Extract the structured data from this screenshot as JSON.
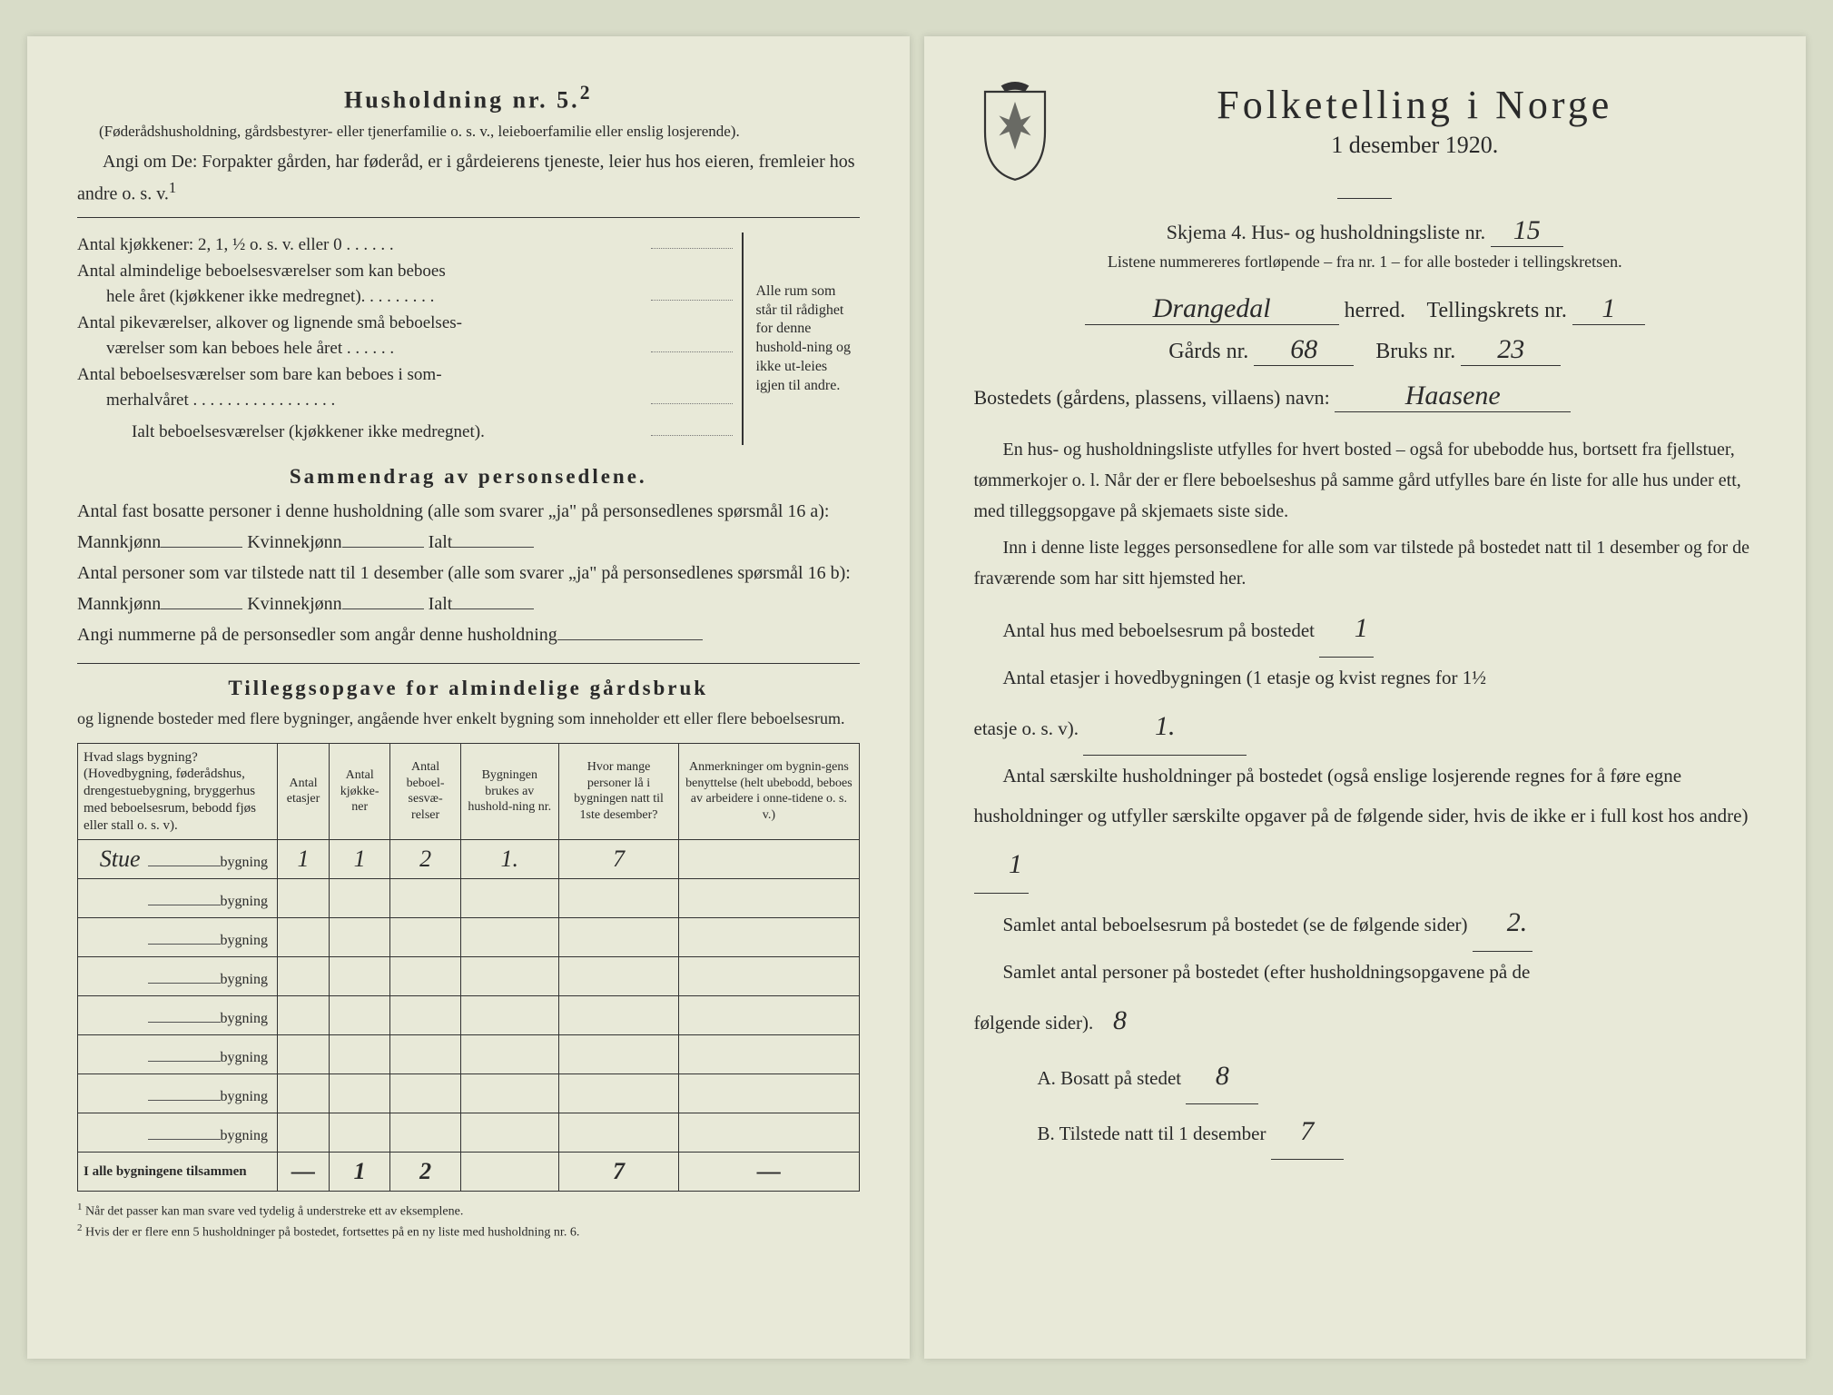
{
  "left": {
    "heading": "Husholdning nr. 5.",
    "heading_sup": "2",
    "note1": "(Føderådshusholdning, gårdsbestyrer- eller tjenerfamilie o. s. v., leieboerfamilie eller enslig losjerende).",
    "note2": "Angi om De: Forpakter gården, har føderåd, er i gårdeierens tjeneste, leier hus hos eieren, fremleier hos andre o. s. v.",
    "note2_sup": "1",
    "kitchen": {
      "l1": "Antal kjøkkener: 2, 1, ½ o. s. v. eller 0 . . . . . .",
      "l2a": "Antal almindelige beboelsesværelser som kan beboes",
      "l2b": "hele året (kjøkkener ikke medregnet). . . . . . . . .",
      "l3a": "Antal pikeværelser, alkover og lignende små beboelses-",
      "l3b": "værelser som kan beboes hele året . . . . . .",
      "l4a": "Antal beboelsesværelser som bare kan beboes i som-",
      "l4b": "merhalvåret . . . . . . . . . . . . . . . . .",
      "l5": "Ialt beboelsesværelser (kjøkkener ikke medregnet).",
      "bracket": "Alle rum som står til rådighet for denne hushold-ning og ikke ut-leies igjen til andre."
    },
    "summary": {
      "heading": "Sammendrag av personsedlene.",
      "l1": "Antal fast bosatte personer i denne husholdning (alle som svarer „ja\" på personsedlenes spørsmål 16 a): Mannkjønn",
      "l1b": "Kvinnekjønn",
      "l1c": "Ialt",
      "l2": "Antal personer som var tilstede natt til 1 desember (alle som svarer „ja\" på personsedlenes spørsmål 16 b): Mannkjønn",
      "l3": "Angi nummerne på de personsedler som angår denne husholdning"
    },
    "tillegg": {
      "heading": "Tilleggsopgave for almindelige gårdsbruk",
      "sub": "og lignende bosteder med flere bygninger, angående hver enkelt bygning som inneholder ett eller flere beboelsesrum."
    },
    "table": {
      "headers": [
        "Hvad slags bygning?\n(Hovedbygning, føderådshus, drengestuebygning, bryggerhus med beboelsesrum, bebodd fjøs eller stall o. s. v).",
        "Antal etasjer",
        "Antal kjøkke-ner",
        "Antal beboel-sesvæ-relser",
        "Bygningen brukes av hushold-ning nr.",
        "Hvor mange personer lå i bygningen natt til 1ste desember?",
        "Anmerkninger om bygnin-gens benyttelse (helt ubebodd, beboes av arbeidere i onne-tidene o. s. v.)"
      ],
      "row_suffix": "bygning",
      "rows": [
        {
          "name": "Stue",
          "c1": "1",
          "c2": "1",
          "c3": "2",
          "c4": "1.",
          "c5": "7",
          "c6": ""
        },
        {
          "name": "",
          "c1": "",
          "c2": "",
          "c3": "",
          "c4": "",
          "c5": "",
          "c6": ""
        },
        {
          "name": "",
          "c1": "",
          "c2": "",
          "c3": "",
          "c4": "",
          "c5": "",
          "c6": ""
        },
        {
          "name": "",
          "c1": "",
          "c2": "",
          "c3": "",
          "c4": "",
          "c5": "",
          "c6": ""
        },
        {
          "name": "",
          "c1": "",
          "c2": "",
          "c3": "",
          "c4": "",
          "c5": "",
          "c6": ""
        },
        {
          "name": "",
          "c1": "",
          "c2": "",
          "c3": "",
          "c4": "",
          "c5": "",
          "c6": ""
        },
        {
          "name": "",
          "c1": "",
          "c2": "",
          "c3": "",
          "c4": "",
          "c5": "",
          "c6": ""
        },
        {
          "name": "",
          "c1": "",
          "c2": "",
          "c3": "",
          "c4": "",
          "c5": "",
          "c6": ""
        }
      ],
      "totals_label": "I alle bygningene tilsammen",
      "totals": [
        "—",
        "1",
        "2",
        "",
        "7",
        "—"
      ]
    },
    "footnotes": {
      "f1": "Når det passer kan man svare ved tydelig å understreke ett av eksemplene.",
      "f2": "Hvis der er flere enn 5 husholdninger på bostedet, fortsettes på en ny liste med husholdning nr. 6."
    }
  },
  "right": {
    "title": "Folketelling  i  Norge",
    "subtitle": "1 desember 1920.",
    "skjema_a": "Skjema 4.  Hus- og husholdningsliste nr.",
    "skjema_nr": "15",
    "listene": "Listene nummereres fortløpende – fra nr. 1 – for alle bosteder i tellingskretsen.",
    "herred_name": "Drangedal",
    "herred_label": "herred.",
    "krets_label": "Tellingskrets nr.",
    "krets_nr": "1",
    "gards_label": "Gårds nr.",
    "gards_nr": "68",
    "bruks_label": "Bruks nr.",
    "bruks_nr": "23",
    "bosted_label": "Bostedets (gårdens, plassens, villaens) navn:",
    "bosted_name": "Haasene",
    "para1": "En hus- og husholdningsliste utfylles for hvert bosted – også for ubebodde hus, bortsett fra fjellstuer, tømmerkojer o. l.  Når der er flere beboelseshus på samme gård utfylles bare én liste for alle hus under ett, med tilleggsopgave på skjemaets siste side.",
    "para2": "Inn i denne liste legges personsedlene for alle som var tilstede på bostedet natt til 1 desember og for de fraværende som har sitt hjemsted her.",
    "a1_label": "Antal hus med beboelsesrum på bostedet",
    "a1_val": "1",
    "a2_label_a": "Antal etasjer i hovedbygningen (1 etasje og kvist regnes for 1½",
    "a2_label_b": "etasje o. s. v).",
    "a2_val": "1.",
    "a3_label": "Antal særskilte husholdninger på bostedet (også enslige losjerende regnes for å føre egne husholdninger og utfyller særskilte opgaver på de følgende sider, hvis de ikke er i full kost hos andre)",
    "a3_val": "1",
    "a4_label": "Samlet antal beboelsesrum på bostedet (se de følgende sider)",
    "a4_val": "2.",
    "a5_label": "Samlet antal personer på bostedet (efter husholdningsopgavene på de",
    "a5_label_b": "følgende sider).",
    "a5_val": "8",
    "sub_a_label": "A.  Bosatt på stedet",
    "sub_a_val": "8",
    "sub_b_label": "B.  Tilstede natt til 1 desember",
    "sub_b_val": "7"
  }
}
